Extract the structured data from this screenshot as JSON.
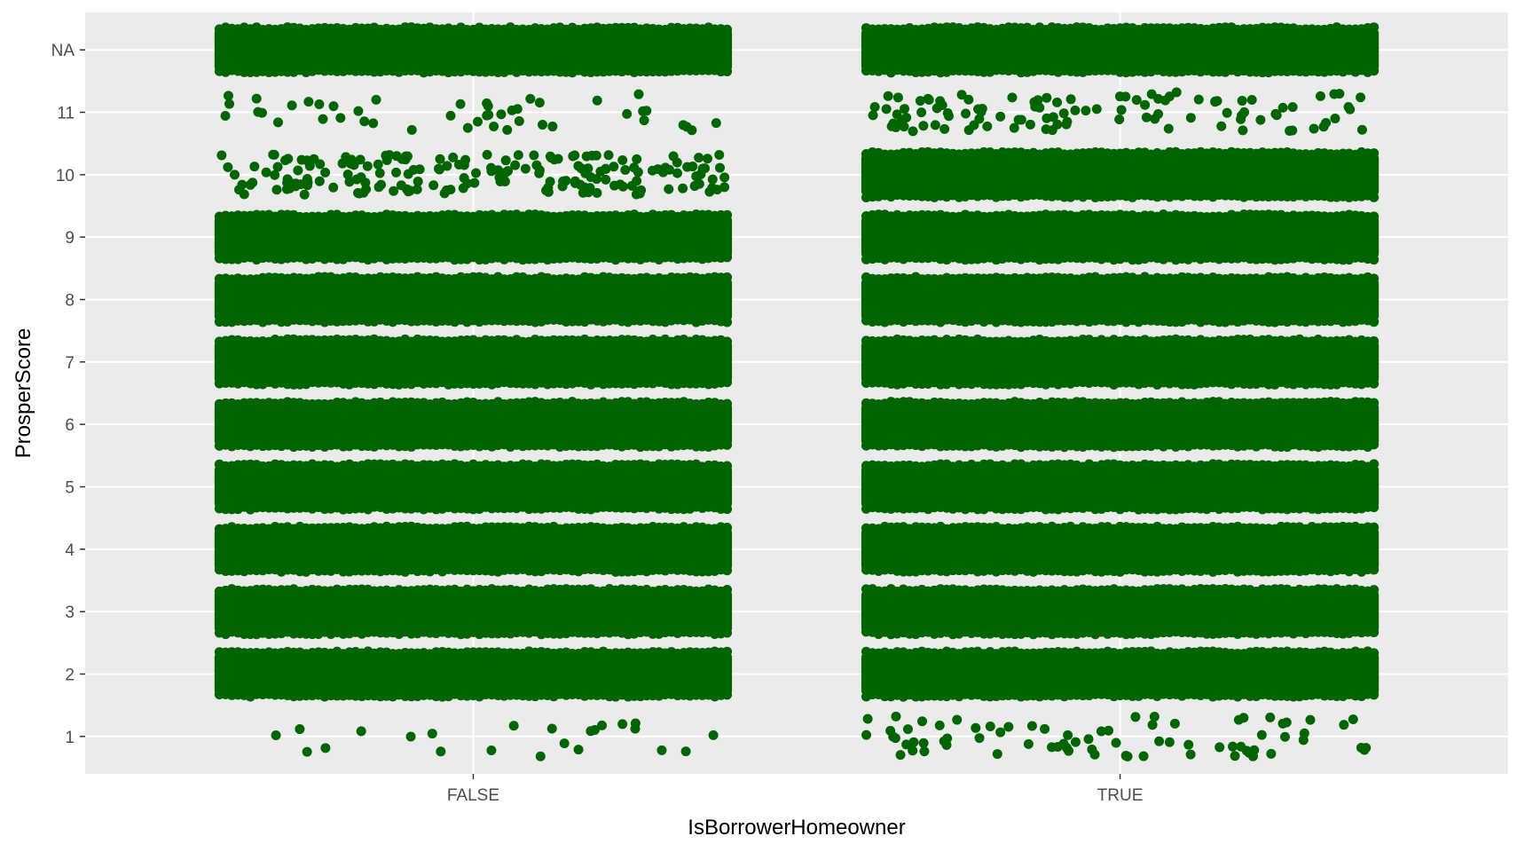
{
  "chart_data": {
    "type": "scatter",
    "jitter": true,
    "title": "",
    "xlabel": "IsBorrowerHomeowner",
    "ylabel": "ProsperScore",
    "x_categories": [
      "FALSE",
      "TRUE"
    ],
    "y_categories": [
      "1",
      "2",
      "3",
      "4",
      "5",
      "6",
      "7",
      "8",
      "9",
      "10",
      "11",
      "NA"
    ],
    "y_tick_labels": [
      "1",
      "2",
      "3",
      "4",
      "5",
      "6",
      "7",
      "8",
      "9",
      "10",
      "11",
      "NA"
    ],
    "point_color": "#006400",
    "panel_background": "#ebebeb",
    "grid_color": "#ffffff",
    "grid": true,
    "legend": "none",
    "relative_density": {
      "FALSE": {
        "1": 0.06,
        "2": 1.0,
        "3": 1.0,
        "4": 1.0,
        "5": 1.0,
        "6": 1.0,
        "7": 1.0,
        "8": 1.0,
        "9": 1.0,
        "10": 0.5,
        "11": 0.12,
        "NA": 1.0
      },
      "TRUE": {
        "1": 0.2,
        "2": 1.0,
        "3": 1.0,
        "4": 1.0,
        "5": 1.0,
        "6": 1.0,
        "7": 1.0,
        "8": 1.0,
        "9": 1.0,
        "10": 1.0,
        "11": 0.28,
        "NA": 1.0
      }
    }
  }
}
